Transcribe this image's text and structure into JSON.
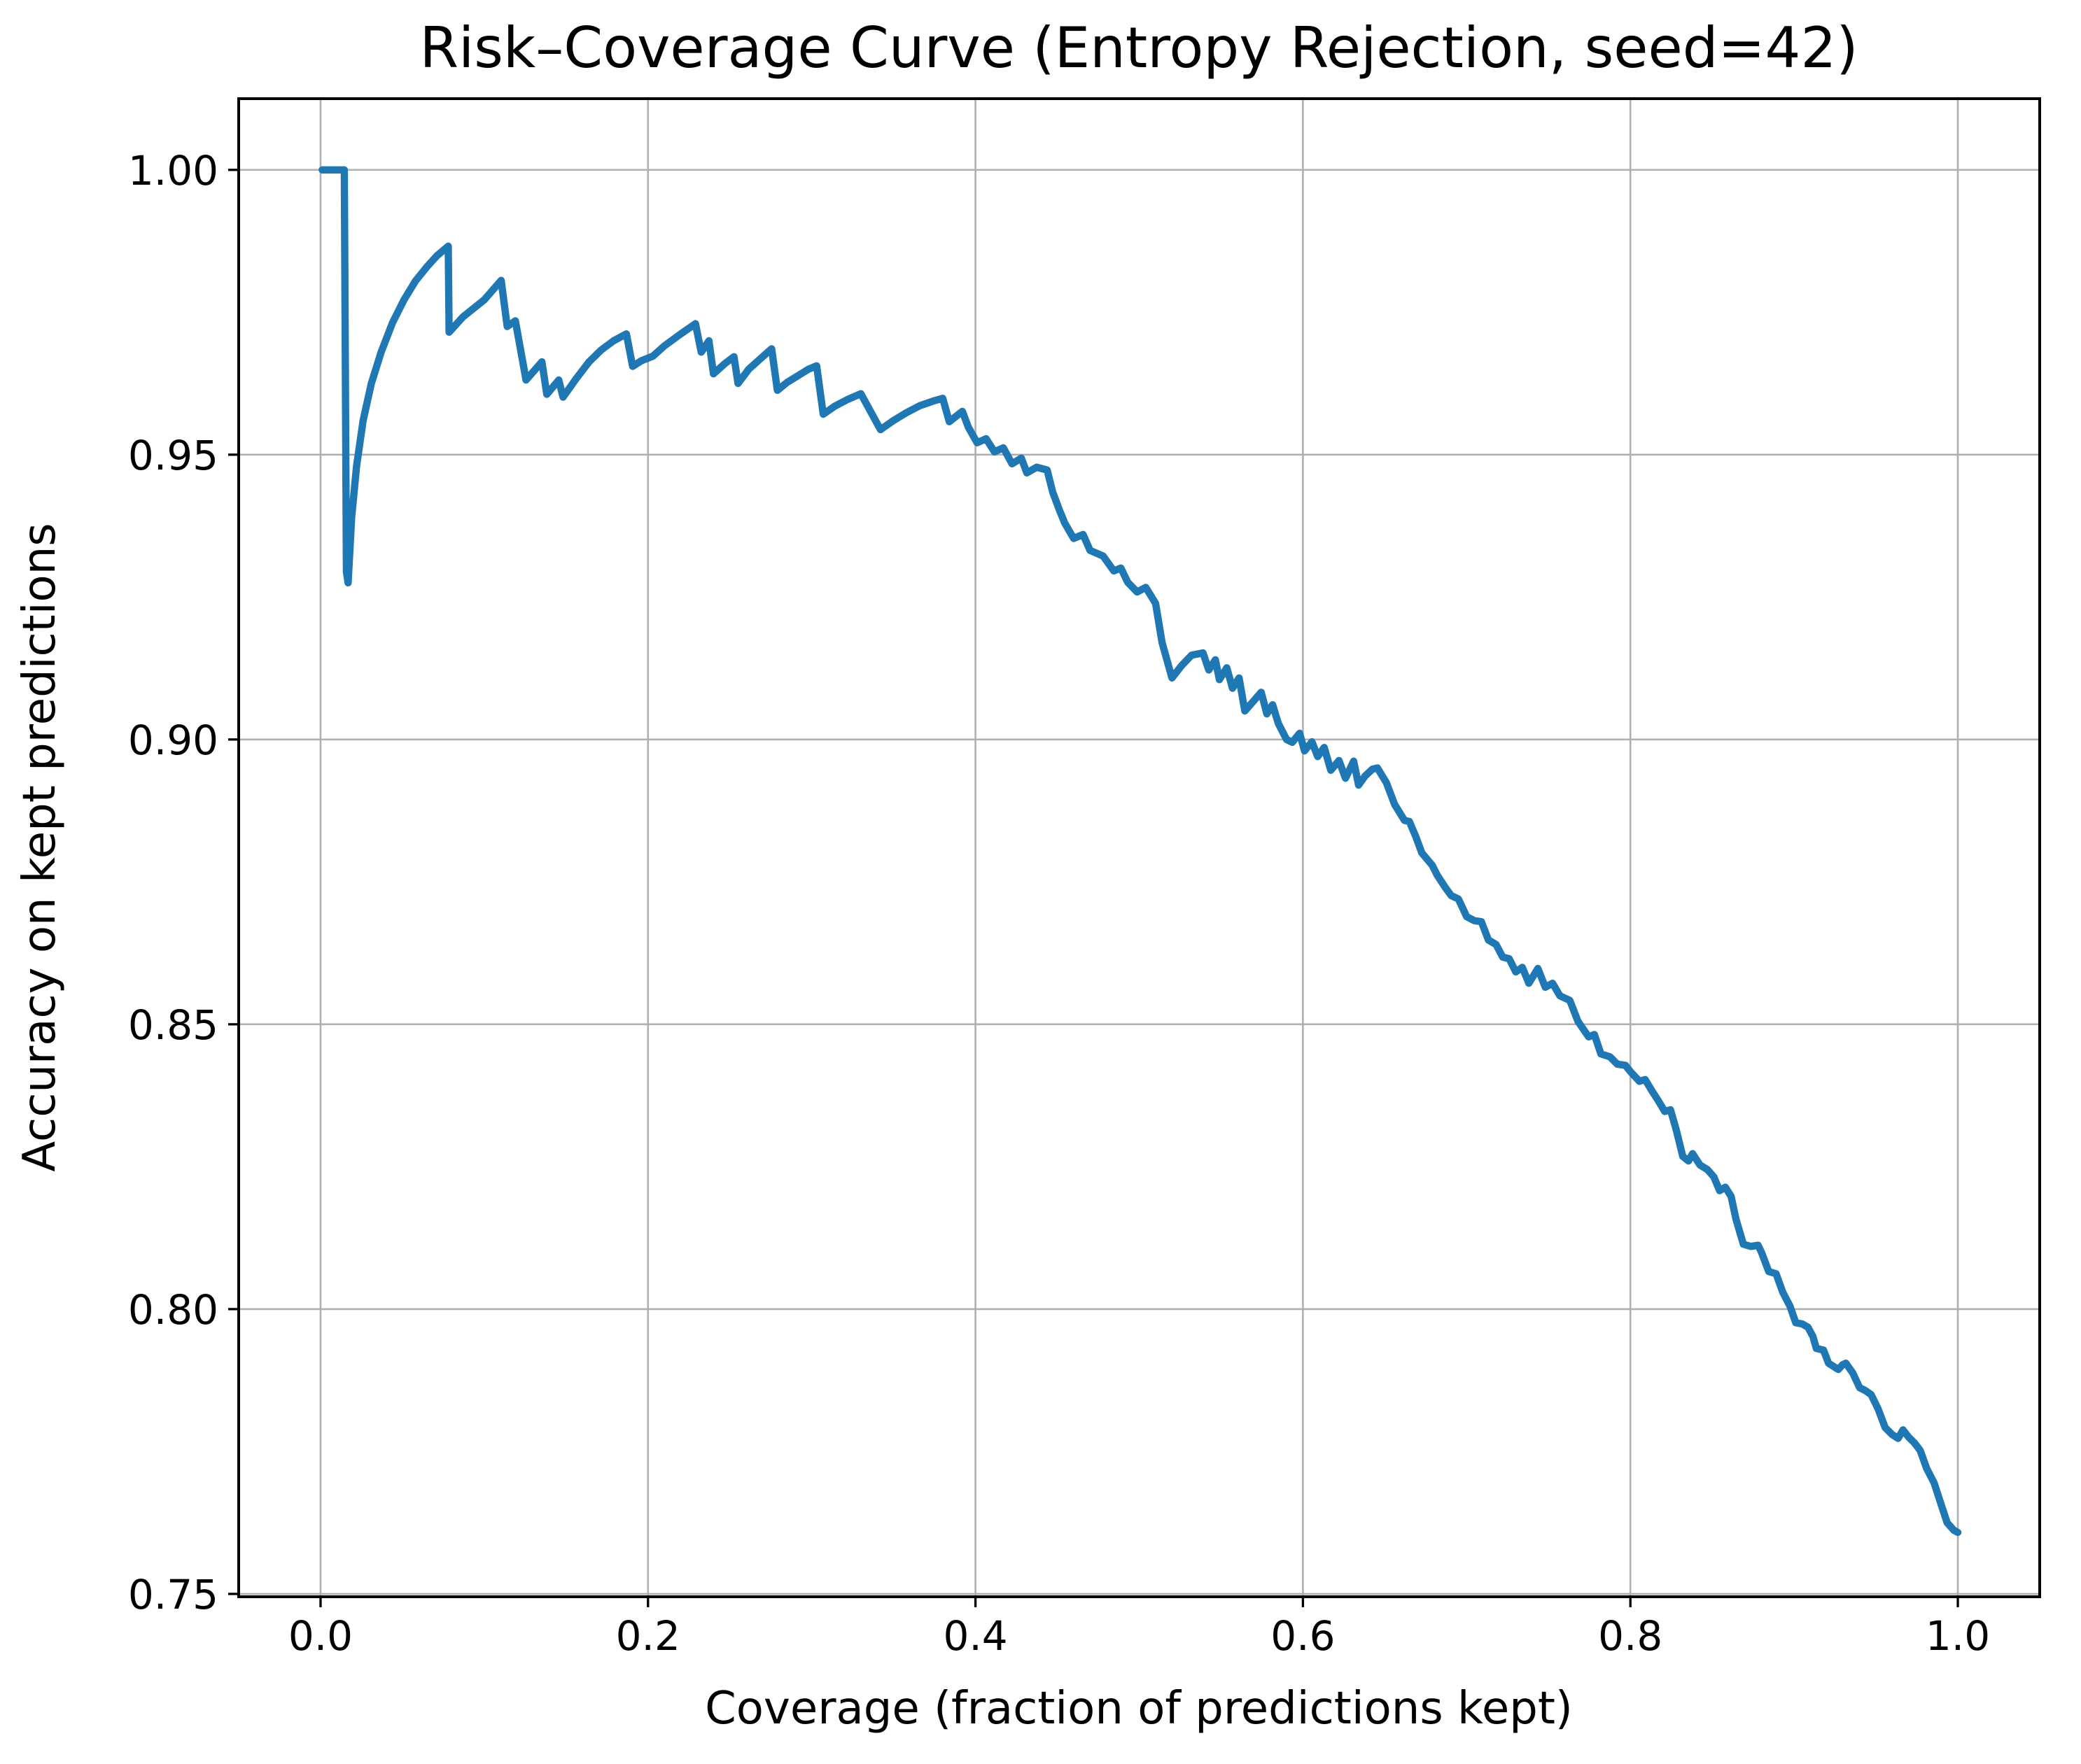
{
  "figure": {
    "background": "#ffffff"
  },
  "chart_data": {
    "type": "line",
    "title": "Risk–Coverage Curve (Entropy Rejection, seed=42)",
    "xlabel": "Coverage (fraction of predictions kept)",
    "ylabel": "Accuracy on kept predictions",
    "xlim": [
      -0.05,
      1.05
    ],
    "ylim": [
      0.7495,
      1.0125
    ],
    "grid": true,
    "legend": "none",
    "x_tick_values": [
      0.0,
      0.2,
      0.4,
      0.6,
      0.8,
      1.0
    ],
    "x_tick_labels": [
      "0.0",
      "0.2",
      "0.4",
      "0.6",
      "0.8",
      "1.0"
    ],
    "y_tick_values": [
      0.75,
      0.8,
      0.85,
      0.9,
      0.95,
      1.0
    ],
    "y_tick_labels": [
      "0.75",
      "0.80",
      "0.85",
      "0.90",
      "0.95",
      "1.00"
    ],
    "line_color": "#1f77b4",
    "grid_color": "#b0b0b0",
    "spine_color": "#000000",
    "series": [
      {
        "name": "entropy-rejection-risk-coverage",
        "points": [
          [
            0.001,
            1.0
          ],
          [
            0.0145,
            1.0
          ],
          [
            0.0158,
            0.9295
          ],
          [
            0.0168,
            0.9275
          ],
          [
            0.019,
            0.939
          ],
          [
            0.022,
            0.948
          ],
          [
            0.026,
            0.956
          ],
          [
            0.031,
            0.9625
          ],
          [
            0.037,
            0.968
          ],
          [
            0.044,
            0.9732
          ],
          [
            0.051,
            0.9772
          ],
          [
            0.058,
            0.9805
          ],
          [
            0.065,
            0.983
          ],
          [
            0.071,
            0.9849
          ],
          [
            0.078,
            0.9866
          ],
          [
            0.0785,
            0.9715
          ],
          [
            0.087,
            0.9742
          ],
          [
            0.1,
            0.9772
          ],
          [
            0.1103,
            0.9806
          ],
          [
            0.114,
            0.9725
          ],
          [
            0.119,
            0.9735
          ],
          [
            0.1255,
            0.9631
          ],
          [
            0.1352,
            0.9663
          ],
          [
            0.1382,
            0.9606
          ],
          [
            0.1455,
            0.9631
          ],
          [
            0.1481,
            0.9601
          ],
          [
            0.156,
            0.9633
          ],
          [
            0.164,
            0.9663
          ],
          [
            0.1715,
            0.9684
          ],
          [
            0.179,
            0.97
          ],
          [
            0.1868,
            0.9712
          ],
          [
            0.1906,
            0.9655
          ],
          [
            0.196,
            0.9665
          ],
          [
            0.203,
            0.9673
          ],
          [
            0.21,
            0.9691
          ],
          [
            0.22,
            0.9712
          ],
          [
            0.229,
            0.973
          ],
          [
            0.2325,
            0.968
          ],
          [
            0.2372,
            0.97
          ],
          [
            0.24,
            0.9642
          ],
          [
            0.247,
            0.966
          ],
          [
            0.2525,
            0.9672
          ],
          [
            0.255,
            0.9625
          ],
          [
            0.2615,
            0.965
          ],
          [
            0.2685,
            0.9668
          ],
          [
            0.2755,
            0.9686
          ],
          [
            0.279,
            0.9613
          ],
          [
            0.285,
            0.9627
          ],
          [
            0.298,
            0.965
          ],
          [
            0.303,
            0.9656
          ],
          [
            0.307,
            0.9571
          ],
          [
            0.314,
            0.9585
          ],
          [
            0.322,
            0.9597
          ],
          [
            0.33,
            0.9607
          ],
          [
            0.342,
            0.9544
          ],
          [
            0.35,
            0.956
          ],
          [
            0.358,
            0.9574
          ],
          [
            0.366,
            0.9586
          ],
          [
            0.374,
            0.9594
          ],
          [
            0.38,
            0.9599
          ],
          [
            0.384,
            0.9558
          ],
          [
            0.392,
            0.9576
          ],
          [
            0.3957,
            0.9548
          ],
          [
            0.401,
            0.9521
          ],
          [
            0.4065,
            0.9528
          ],
          [
            0.4116,
            0.9505
          ],
          [
            0.417,
            0.9512
          ],
          [
            0.4223,
            0.9484
          ],
          [
            0.428,
            0.9494
          ],
          [
            0.4314,
            0.9468
          ],
          [
            0.4374,
            0.9478
          ],
          [
            0.4438,
            0.9473
          ],
          [
            0.4472,
            0.9434
          ],
          [
            0.4515,
            0.9401
          ],
          [
            0.4545,
            0.938
          ],
          [
            0.46,
            0.9353
          ],
          [
            0.4657,
            0.936
          ],
          [
            0.47,
            0.9332
          ],
          [
            0.478,
            0.9322
          ],
          [
            0.4845,
            0.9296
          ],
          [
            0.4888,
            0.9301
          ],
          [
            0.493,
            0.9276
          ],
          [
            0.4987,
            0.9259
          ],
          [
            0.504,
            0.9267
          ],
          [
            0.51,
            0.9239
          ],
          [
            0.514,
            0.917
          ],
          [
            0.52,
            0.9108
          ],
          [
            0.526,
            0.913
          ],
          [
            0.532,
            0.9148
          ],
          [
            0.539,
            0.9152
          ],
          [
            0.5425,
            0.9122
          ],
          [
            0.5465,
            0.914
          ],
          [
            0.549,
            0.9105
          ],
          [
            0.5535,
            0.9126
          ],
          [
            0.557,
            0.909
          ],
          [
            0.561,
            0.9108
          ],
          [
            0.5645,
            0.905
          ],
          [
            0.57,
            0.9068
          ],
          [
            0.5745,
            0.9083
          ],
          [
            0.578,
            0.9045
          ],
          [
            0.5815,
            0.9061
          ],
          [
            0.585,
            0.9028
          ],
          [
            0.59,
            0.9
          ],
          [
            0.5935,
            0.8995
          ],
          [
            0.598,
            0.9011
          ],
          [
            0.601,
            0.898
          ],
          [
            0.6055,
            0.8996
          ],
          [
            0.609,
            0.897
          ],
          [
            0.613,
            0.8986
          ],
          [
            0.617,
            0.8946
          ],
          [
            0.622,
            0.8963
          ],
          [
            0.626,
            0.8932
          ],
          [
            0.631,
            0.8962
          ],
          [
            0.634,
            0.892
          ],
          [
            0.638,
            0.8936
          ],
          [
            0.6425,
            0.8948
          ],
          [
            0.6455,
            0.895
          ],
          [
            0.651,
            0.8924
          ],
          [
            0.656,
            0.8886
          ],
          [
            0.662,
            0.8858
          ],
          [
            0.665,
            0.8856
          ],
          [
            0.669,
            0.8829
          ],
          [
            0.6726,
            0.8801
          ],
          [
            0.679,
            0.8779
          ],
          [
            0.682,
            0.8762
          ],
          [
            0.687,
            0.874
          ],
          [
            0.6906,
            0.8726
          ],
          [
            0.695,
            0.872
          ],
          [
            0.7,
            0.8689
          ],
          [
            0.7047,
            0.8682
          ],
          [
            0.709,
            0.868
          ],
          [
            0.7133,
            0.8648
          ],
          [
            0.718,
            0.864
          ],
          [
            0.722,
            0.8618
          ],
          [
            0.726,
            0.8615
          ],
          [
            0.73,
            0.8592
          ],
          [
            0.734,
            0.86
          ],
          [
            0.738,
            0.8572
          ],
          [
            0.7435,
            0.8598
          ],
          [
            0.748,
            0.8565
          ],
          [
            0.7525,
            0.8572
          ],
          [
            0.757,
            0.855
          ],
          [
            0.763,
            0.8542
          ],
          [
            0.768,
            0.8505
          ],
          [
            0.7745,
            0.8478
          ],
          [
            0.778,
            0.8482
          ],
          [
            0.782,
            0.8448
          ],
          [
            0.7875,
            0.8443
          ],
          [
            0.792,
            0.843
          ],
          [
            0.797,
            0.8428
          ],
          [
            0.8,
            0.8417
          ],
          [
            0.8055,
            0.84
          ],
          [
            0.809,
            0.8403
          ],
          [
            0.813,
            0.8384
          ],
          [
            0.817,
            0.8366
          ],
          [
            0.821,
            0.8347
          ],
          [
            0.8245,
            0.835
          ],
          [
            0.828,
            0.8315
          ],
          [
            0.832,
            0.8268
          ],
          [
            0.8355,
            0.826
          ],
          [
            0.838,
            0.8273
          ],
          [
            0.8425,
            0.8253
          ],
          [
            0.847,
            0.8245
          ],
          [
            0.851,
            0.8232
          ],
          [
            0.8545,
            0.8208
          ],
          [
            0.858,
            0.8214
          ],
          [
            0.8615,
            0.8198
          ],
          [
            0.8645,
            0.8158
          ],
          [
            0.869,
            0.8114
          ],
          [
            0.8735,
            0.811
          ],
          [
            0.878,
            0.8112
          ],
          [
            0.88,
            0.81
          ],
          [
            0.8845,
            0.8066
          ],
          [
            0.889,
            0.8062
          ],
          [
            0.893,
            0.803
          ],
          [
            0.8975,
            0.8005
          ],
          [
            0.901,
            0.7976
          ],
          [
            0.905,
            0.7974
          ],
          [
            0.9085,
            0.7968
          ],
          [
            0.9115,
            0.7952
          ],
          [
            0.9136,
            0.7931
          ],
          [
            0.918,
            0.7928
          ],
          [
            0.921,
            0.7905
          ],
          [
            0.9243,
            0.7899
          ],
          [
            0.927,
            0.7894
          ],
          [
            0.9295,
            0.7902
          ],
          [
            0.9316,
            0.7905
          ],
          [
            0.9358,
            0.7888
          ],
          [
            0.94,
            0.7862
          ],
          [
            0.9435,
            0.7857
          ],
          [
            0.947,
            0.785
          ],
          [
            0.9513,
            0.7825
          ],
          [
            0.9556,
            0.7792
          ],
          [
            0.9598,
            0.778
          ],
          [
            0.9635,
            0.7773
          ],
          [
            0.9665,
            0.7788
          ],
          [
            0.97,
            0.7775
          ],
          [
            0.9735,
            0.7765
          ],
          [
            0.977,
            0.7752
          ],
          [
            0.981,
            0.772
          ],
          [
            0.9855,
            0.7695
          ],
          [
            0.99,
            0.7655
          ],
          [
            0.9935,
            0.7625
          ],
          [
            0.9975,
            0.7612
          ],
          [
            1.0,
            0.7608
          ]
        ]
      }
    ]
  }
}
